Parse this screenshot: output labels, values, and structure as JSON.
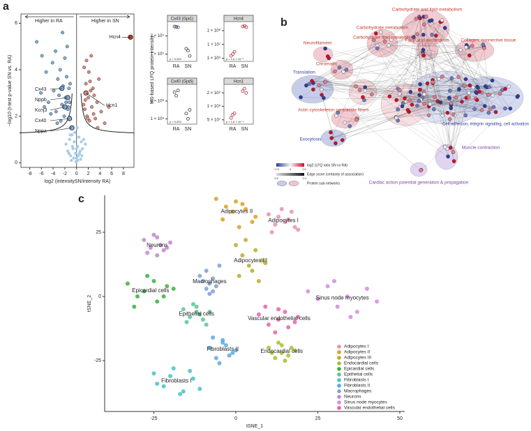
{
  "panel_labels": [
    "a",
    "b",
    "c"
  ],
  "dotplot_ylabel": "MS-based LFQ protein intensity",
  "chart_data": [
    {
      "type": "scatter",
      "xlabel": "log2 (intensitySN/intensity RA)",
      "ylabel": "−log10 (t-test p-value SN vs. RA)",
      "left_label": "Higher in RA",
      "right_label": "Higher in SN",
      "xlim": [
        -9.5,
        9.8
      ],
      "ylim": [
        -0.2,
        6.4
      ],
      "xticks": [
        -8,
        -6,
        -4,
        -2,
        0,
        2,
        4,
        6,
        8
      ],
      "yticks": [
        0,
        2,
        4,
        6
      ],
      "series": [
        {
          "color": "#7fb0d8",
          "x": [
            -6.8,
            -5.9,
            -5.2,
            -4.8,
            -4.1,
            -3.9,
            -3.5,
            -3.2,
            -3.0,
            -2.8,
            -2.5,
            -2.3,
            -2.1,
            -1.9,
            -1.7,
            -1.5,
            -1.4,
            -1.2,
            -6.1,
            -4.4,
            -3.6,
            -2.7,
            -2.0,
            -1.6,
            -1.3,
            -5.5,
            -3.3,
            -2.4,
            -1.8,
            -1.1
          ],
          "values": [
            5.2,
            4.6,
            3.9,
            2.6,
            4.3,
            3.1,
            2.2,
            3.6,
            2.9,
            4.0,
            2.5,
            3.3,
            2.0,
            2.8,
            3.7,
            2.3,
            2.4,
            2.6,
            3.0,
            2.1,
            4.8,
            1.8,
            4.5,
            5.0,
            3.2,
            2.4,
            1.7,
            5.6,
            2.6,
            3.4
          ]
        },
        {
          "color": "#e08a80",
          "x": [
            1.2,
            1.4,
            1.6,
            1.8,
            2.0,
            2.2,
            2.4,
            2.6,
            2.9,
            3.2,
            3.5,
            3.8,
            4.2,
            4.8,
            5.5,
            1.3,
            1.7,
            2.1,
            2.5,
            3.0,
            1.5,
            1.9,
            2.3,
            2.8,
            3.6
          ],
          "values": [
            2.5,
            2.3,
            3.4,
            2.0,
            2.8,
            1.8,
            3.1,
            2.4,
            2.1,
            1.9,
            2.6,
            3.6,
            2.2,
            1.7,
            2.4,
            4.1,
            4.4,
            3.9,
            4.6,
            2.9,
            2.7,
            1.9,
            3.5,
            3.2,
            1.5
          ]
        },
        {
          "color": "#a9cde8",
          "x": [
            -1.8,
            -1.5,
            -1.2,
            -1.0,
            -0.8,
            -0.6,
            -0.4,
            -0.2,
            0,
            0.2,
            0.4,
            0.6,
            0.8,
            1.0,
            1.2,
            1.5,
            -0.9,
            -0.5,
            -0.1,
            0.3,
            0.7,
            -1.3,
            -0.3,
            0.1,
            0.5,
            -0.7,
            0.9,
            -1.1,
            0.0,
            0.2
          ],
          "values": [
            0.8,
            0.5,
            1.0,
            0.3,
            1.2,
            0.6,
            0.9,
            0.4,
            0.2,
            0.7,
            1.1,
            0.5,
            0.9,
            0.6,
            1.0,
            0.8,
            0.1,
            0.2,
            0.05,
            0.3,
            0.15,
            0.4,
            1.3,
            1.5,
            0.4,
            0.7,
            0.3,
            1.2,
            0.6,
            0.1
          ]
        }
      ],
      "annotations": [
        {
          "text": "Hcn4",
          "x": 9.2,
          "y": 5.4
        },
        {
          "text": "Cx43",
          "x": -2.5,
          "y": 3.2
        },
        {
          "text": "Nppb",
          "x": -1.5,
          "y": 2.8
        },
        {
          "text": "Kcnj3",
          "x": -2.0,
          "y": 2.4
        },
        {
          "text": "Cx40",
          "x": -1.2,
          "y": 1.9
        },
        {
          "text": "Nppa",
          "x": -0.8,
          "y": 1.5
        },
        {
          "text": "Hcn1",
          "x": 1.6,
          "y": 3.0
        }
      ]
    },
    {
      "type": "dot",
      "title": "Cx43 (Gja1)",
      "categories": [
        "RA",
        "SN"
      ],
      "values": [
        [
          2520000000.0,
          2500000000.0,
          2480000000.0
        ],
        [
          1300000000.0,
          1200000000.0,
          900000000.0
        ]
      ],
      "ylim": [
        600000000.0,
        2750000000.0
      ],
      "log": false,
      "yticks": [
        {
          "value": 1000000000.0,
          "label": "1 × 10⁹"
        },
        {
          "value": 2000000000.0,
          "label": "2 × 10⁹"
        }
      ],
      "annotation": "p = 0.002",
      "color": "#44546a"
    },
    {
      "type": "dot",
      "title": "Hcn4",
      "categories": [
        "RA",
        "SN"
      ],
      "values": [
        [
          1500000.0,
          2000000.0,
          3000000.0
        ],
        [
          200000000.0,
          220000000.0,
          180000000.0
        ]
      ],
      "ylim": [
        600000.0,
        400000000.0
      ],
      "log": true,
      "yticks": [
        {
          "value": 1000000.0,
          "label": "1 × 10⁶"
        },
        {
          "value": 10000000.0,
          "label": "1 × 10⁷"
        },
        {
          "value": 100000000.0,
          "label": "1 × 10⁸"
        }
      ],
      "annotation": "p = 1.6 × 10⁻⁶",
      "color": "#b5474d"
    },
    {
      "type": "dot",
      "title": "Cx40 (Gja5)",
      "categories": [
        "RA",
        "SN"
      ],
      "values": [
        [
          250000000.0,
          230000000.0,
          260000000.0
        ],
        [
          130000000.0,
          100000000.0,
          150000000.0
        ]
      ],
      "ylim": [
        70000000.0,
        290000000.0
      ],
      "log": false,
      "yticks": [
        {
          "value": 100000000.0,
          "label": "1 × 10⁸"
        },
        {
          "value": 200000000.0,
          "label": "2 × 10⁸"
        }
      ],
      "annotation": "p = 0.002",
      "color": "#44546a"
    },
    {
      "type": "dot",
      "title": "Hcn1",
      "categories": [
        "RA",
        "SN"
      ],
      "values": [
        [
          55000000.0,
          65000000.0,
          70000000.0
        ],
        [
          220000000.0,
          250000000.0,
          200000000.0
        ]
      ],
      "ylim": [
        40000000.0,
        300000000.0
      ],
      "log": true,
      "yticks": [
        {
          "value": 50000000.0,
          "label": "5 × 10⁷"
        },
        {
          "value": 100000000.0,
          "label": "1 × 10⁸"
        },
        {
          "value": 200000000.0,
          "label": "2 × 10⁸"
        }
      ],
      "annotation": "p = 1.6 × 10⁻⁴",
      "color": "#b5474d"
    },
    {
      "type": "tsne",
      "xlabel": "tSNE_1",
      "ylabel": "tSNE_2",
      "xlim": [
        -40,
        51.5
      ],
      "ylim": [
        -44.8,
        39.4
      ],
      "xticks": [
        -25,
        0,
        25,
        50
      ],
      "yticks": [
        -25,
        0,
        25
      ],
      "series": [
        {
          "name": "Adipocytes I",
          "color": "#e88fb4",
          "x": [
            10,
            12,
            14,
            16,
            18,
            11,
            13,
            15,
            17,
            19
          ],
          "values": [
            32,
            28,
            34,
            30,
            27,
            25,
            31,
            29,
            33,
            26
          ]
        },
        {
          "name": "Adipocytes II",
          "color": "#d9a21f",
          "x": [
            -6,
            -3,
            0,
            3,
            6,
            -4,
            -1,
            2,
            5,
            1
          ],
          "values": [
            38,
            35,
            37,
            34,
            31,
            30,
            33,
            36,
            29,
            27
          ]
        },
        {
          "name": "Adipocytes III",
          "color": "#b8ad2c",
          "x": [
            0,
            2,
            4,
            6,
            8,
            1,
            3,
            5,
            9,
            7
          ],
          "values": [
            20,
            16,
            12,
            18,
            14,
            8,
            22,
            10,
            13,
            6
          ]
        },
        {
          "name": "Endocardial cells",
          "color": "#a3c22b",
          "x": [
            10,
            12,
            14,
            16,
            18,
            11,
            13,
            15,
            17,
            14
          ],
          "values": [
            -20,
            -24,
            -19,
            -23,
            -21,
            -22,
            -18,
            -25,
            -20,
            -22
          ]
        },
        {
          "name": "Epicardial cells",
          "color": "#3fae3f",
          "x": [
            -33,
            -30,
            -27,
            -24,
            -21,
            -31,
            -28,
            -25,
            -22,
            -19
          ],
          "values": [
            5,
            0,
            8,
            -2,
            4,
            -4,
            2,
            6,
            0,
            3
          ]
        },
        {
          "name": "Epithelial cells",
          "color": "#5cc493",
          "x": [
            -16,
            -14,
            -12,
            -10,
            -8,
            -15,
            -13,
            -11,
            -9,
            -12
          ],
          "values": [
            -5,
            -8,
            -4,
            -9,
            -6,
            -10,
            -3,
            -7,
            -11,
            -6
          ]
        },
        {
          "name": "Fibroblasts I",
          "color": "#46c2cb",
          "x": [
            -25,
            -22,
            -19,
            -16,
            -13,
            -24,
            -20,
            -17,
            -14,
            -11
          ],
          "values": [
            -30,
            -35,
            -28,
            -37,
            -32,
            -34,
            -31,
            -38,
            -29,
            -36
          ]
        },
        {
          "name": "Fibroblasts II",
          "color": "#5aa9e0",
          "x": [
            -8,
            -6,
            -4,
            -2,
            0,
            -7,
            -5,
            -3,
            -1,
            -4
          ],
          "values": [
            -20,
            -24,
            -18,
            -23,
            -21,
            -16,
            -26,
            -19,
            -22,
            -17
          ]
        },
        {
          "name": "Macrophages",
          "color": "#7f9fd8",
          "x": [
            -10,
            -9,
            -8,
            -7,
            -6,
            -11,
            -8,
            -7,
            -9,
            -5
          ],
          "values": [
            6,
            3,
            5,
            2,
            4,
            8,
            1,
            7,
            10,
            12
          ]
        },
        {
          "name": "Neurons",
          "color": "#c684d4",
          "x": [
            -28,
            -26,
            -24,
            -22,
            -20,
            -27,
            -25,
            -23,
            -21,
            -24
          ],
          "values": [
            22,
            19,
            23,
            18,
            21,
            17,
            24,
            20,
            19,
            16
          ]
        },
        {
          "name": "Sinus node myocytes",
          "color": "#d58ae0",
          "x": [
            22,
            25,
            28,
            31,
            34,
            37,
            40,
            43,
            30,
            35
          ],
          "values": [
            2,
            -1,
            4,
            -4,
            0,
            -6,
            3,
            -2,
            6,
            -8
          ]
        },
        {
          "name": "Vascular endothelial cells",
          "color": "#e563a8",
          "x": [
            7,
            10,
            13,
            16,
            19,
            9,
            12,
            15,
            18,
            13
          ],
          "values": [
            -7,
            -11,
            -5,
            -12,
            -8,
            -4,
            -14,
            -6,
            -10,
            -9
          ]
        }
      ]
    }
  ],
  "network": {
    "clusters": [
      {
        "label": "Carbohydrate and lipid metabolism"
      },
      {
        "label": "Carbohydrate metabolism"
      },
      {
        "label": "Carbohydrate lipid metabolism"
      },
      {
        "label": "Fatty acid metabolism"
      },
      {
        "label": "Collagen, connective tissue"
      },
      {
        "label": "Neurofilament"
      },
      {
        "label": "Chromatin"
      },
      {
        "label": "Translation"
      },
      {
        "label": "Actin cytoskeleton contractile fibers"
      },
      {
        "label": "Exocytosis"
      },
      {
        "label": "Cell adhesion, integrin signaling, cell activation"
      },
      {
        "label": "Muscle contraction"
      },
      {
        "label": "Cardiac action potential generation & propagation"
      }
    ],
    "legend": {
      "color_title": "log2 (LFQ ratio SN vs RA)",
      "color_ticks": [
        "−2.0",
        "0",
        "2.0"
      ],
      "edge_title": "Edge score (certainty of association)",
      "edge_ticks": [
        "0.5",
        "1.0"
      ],
      "subnet_title": "Protein sub-networks"
    }
  }
}
